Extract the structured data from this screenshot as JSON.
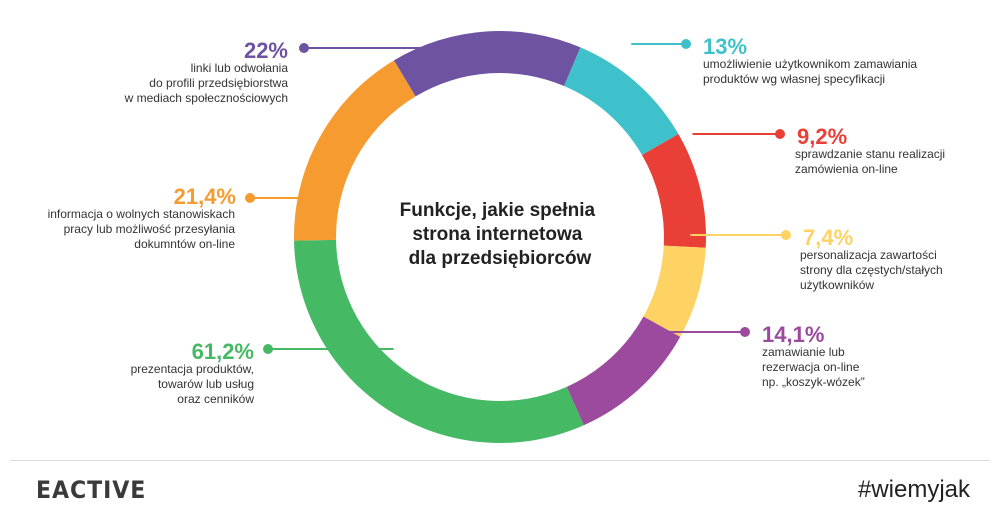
{
  "chart_data": {
    "type": "donut",
    "title": "Funkcje, jakie spełnia strona internetowa dla przedsiębiorców",
    "title_lines": [
      "Funkcje, jakie spełnia",
      "strona internetowa",
      "dla przedsiębiorców"
    ],
    "segments": [
      {
        "value": 22,
        "label": "22%",
        "color": "#6e53a3",
        "desc": [
          "linki lub odwołania",
          "do profili przedsiębiorstwa",
          "w mediach społecznościowych"
        ]
      },
      {
        "value": 13,
        "label": "13%",
        "color": "#3fc1cc",
        "desc": [
          "umożliwienie użytkownikom zamawiania",
          "produktów wg własnej specyfikacji"
        ]
      },
      {
        "value": 9.2,
        "label": "9,2%",
        "color": "#ea3f36",
        "desc": [
          "sprawdzanie stanu realizacji",
          "zamówienia on-line"
        ]
      },
      {
        "value": 7.4,
        "label": "7,4%",
        "color": "#fed263",
        "desc": [
          "personalizacja zawartości",
          "strony dla częstych/stałych",
          "użytkowników"
        ]
      },
      {
        "value": 14.1,
        "label": "14,1%",
        "color": "#9b4a9d",
        "desc": [
          "zamawianie lub",
          "rezerwacja on-line",
          "np. „koszyk-wózek”"
        ]
      },
      {
        "value": 61.2,
        "label": "61,2%",
        "color": "#45b964",
        "desc": [
          "prezentacja produktów,",
          "towarów lub usług",
          "oraz cenników"
        ]
      },
      {
        "value": 21.4,
        "label": "21,4%",
        "color": "#f69b2f",
        "desc": [
          "informacja o wolnych stanowiskach",
          "pracy lub możliwość przesyłania",
          "dokumntów on-line"
        ]
      }
    ]
  },
  "footer": {
    "logo": "EACTIVE",
    "tagline": "#wiemyjak"
  }
}
